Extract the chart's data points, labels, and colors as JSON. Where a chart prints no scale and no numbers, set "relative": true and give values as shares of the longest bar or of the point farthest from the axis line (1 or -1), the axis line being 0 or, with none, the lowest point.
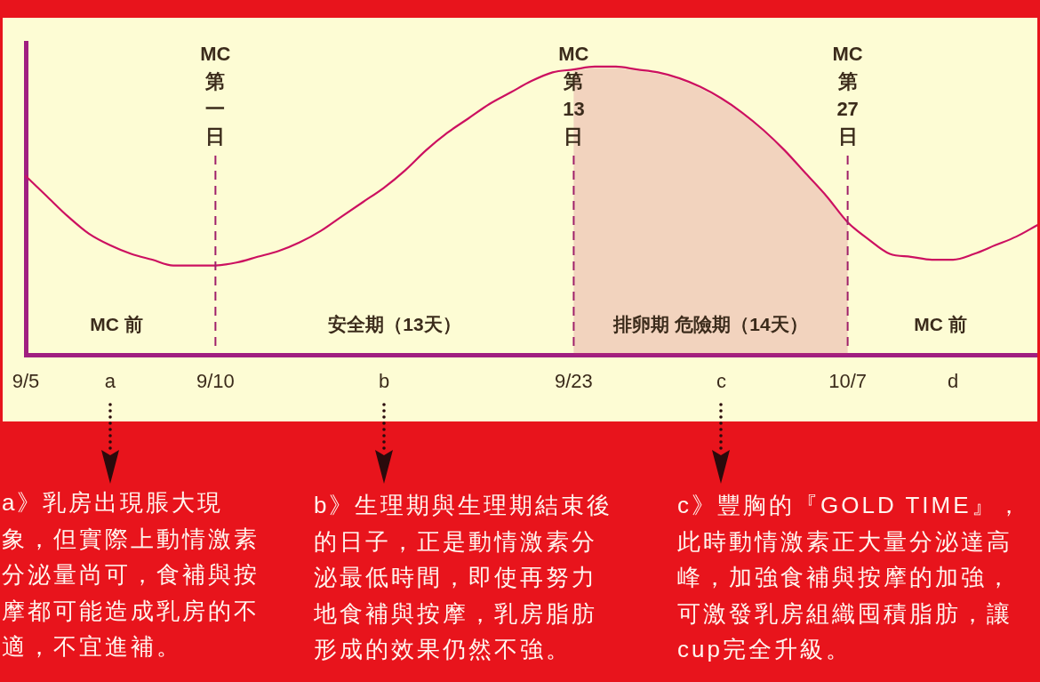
{
  "chart_data": {
    "type": "line",
    "categories": [
      "9/5",
      null,
      null,
      null,
      "a",
      null,
      null,
      null,
      null,
      "9/10",
      null,
      null,
      null,
      null,
      null,
      null,
      null,
      "b",
      null,
      null,
      null,
      null,
      null,
      null,
      null,
      null,
      "9/23",
      null,
      null,
      null,
      null,
      null,
      null,
      "c",
      null,
      null,
      null,
      null,
      null,
      "10/7",
      null,
      null,
      null,
      null,
      "d",
      null,
      null,
      null,
      null
    ],
    "values": [
      0.62,
      0.55,
      0.48,
      0.42,
      0.38,
      0.35,
      0.33,
      0.31,
      0.31,
      0.31,
      0.32,
      0.34,
      0.36,
      0.39,
      0.43,
      0.48,
      0.53,
      0.58,
      0.64,
      0.71,
      0.77,
      0.82,
      0.87,
      0.91,
      0.95,
      0.98,
      0.99,
      1,
      1,
      0.99,
      0.98,
      0.96,
      0.93,
      0.89,
      0.84,
      0.78,
      0.71,
      0.63,
      0.55,
      0.46,
      0.4,
      0.35,
      0.34,
      0.33,
      0.33,
      0.35,
      0.38,
      0.41,
      0.45
    ],
    "color": "#cc1060",
    "relative": true,
    "marker": "none",
    "ref_lines": [
      {
        "axis": "x",
        "value": "9/10",
        "label": "MC第一日",
        "color": "#a0206a",
        "line_style": "dashed"
      },
      {
        "axis": "x",
        "value": "9/23",
        "label": "MC第13日",
        "color": "#a0206a",
        "line_style": "dashed"
      },
      {
        "axis": "x",
        "value": "10/7",
        "label": "MC第27日",
        "color": "#a0206a",
        "line_style": "dashed"
      }
    ],
    "bands": [
      {
        "axis": "x",
        "from": "9/23",
        "to": "10/7",
        "label": "排卵期 危險期（14天）",
        "color": "#c8306a"
      }
    ],
    "annotations": [
      "MC 前",
      "安全期（13天）",
      "MC 前",
      "a》乳房出現脹大現象，但實際上動情激素分泌量尚可，食補與按摩都可能造成乳房的不適，不宜進補。",
      "b》生理期與生理期結束後的日子，正是動情激素分泌最低時間，即使再努力地食補與按摩，乳房脂肪形成的效果仍然不強。",
      "c》豐胸的『GOLD TIME』，此時動情激素正大量分泌達高峰，加強食補與按摩的加強，可激發乳房組織囤積脂肪，讓cup完全升級。"
    ]
  }
}
